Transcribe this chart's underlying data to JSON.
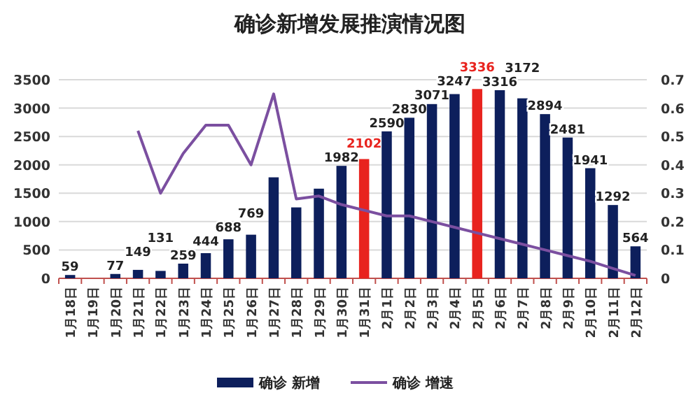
{
  "chart_data": {
    "type": "bar",
    "title": "确诊新增发展推演情况图",
    "categories": [
      "1月18日",
      "1月19日",
      "1月20日",
      "1月21日",
      "1月22日",
      "1月23日",
      "1月24日",
      "1月25日",
      "1月26日",
      "1月27日",
      "1月28日",
      "1月29日",
      "1月30日",
      "1月31日",
      "2月1日",
      "2月2日",
      "2月3日",
      "2月4日",
      "2月5日",
      "2月6日",
      "2月7日",
      "2月8日",
      "2月9日",
      "2月10日",
      "2月11日",
      "2月12日"
    ],
    "series": [
      {
        "name": "确诊 新增",
        "color": "#0d1f5c",
        "colors": [
          "#0d1f5c",
          null,
          "#0d1f5c",
          "#0d1f5c",
          "#0d1f5c",
          "#0d1f5c",
          "#0d1f5c",
          "#0d1f5c",
          "#0d1f5c",
          "#0d1f5c",
          "#0d1f5c",
          "#0d1f5c",
          "#0d1f5c",
          "#e8231e",
          "#0d1f5c",
          "#0d1f5c",
          "#0d1f5c",
          "#0d1f5c",
          "#e8231e",
          "#0d1f5c",
          "#0d1f5c",
          "#0d1f5c",
          "#0d1f5c",
          "#0d1f5c",
          "#0d1f5c",
          "#0d1f5c"
        ],
        "values": [
          59,
          null,
          77,
          149,
          131,
          259,
          444,
          688,
          769,
          1780,
          1250,
          1580,
          1982,
          2102,
          2590,
          2830,
          3071,
          3247,
          3336,
          3316,
          3172,
          2894,
          2481,
          1941,
          1292,
          564
        ],
        "value_labels": [
          "59",
          null,
          "77",
          "149",
          "131",
          "259",
          "444",
          "688",
          "769",
          null,
          null,
          null,
          "1982",
          "2102",
          "2590",
          "2830",
          "3071",
          "3247",
          "3336",
          "3316",
          "3172",
          "2894",
          "2481",
          "1941",
          "1292",
          "564"
        ]
      },
      {
        "name": "确诊 增速",
        "type": "line",
        "axis": "y2",
        "color": "#7b4fa0",
        "values": [
          null,
          null,
          null,
          0.52,
          0.3,
          0.44,
          0.54,
          0.54,
          0.4,
          0.65,
          0.28,
          0.29,
          0.26,
          0.24,
          0.22,
          0.22,
          0.2,
          0.18,
          0.16,
          0.14,
          0.12,
          0.1,
          0.08,
          0.06,
          0.035,
          0.01
        ]
      }
    ],
    "ylim": [
      0,
      3500
    ],
    "yticks": [
      0,
      500,
      1000,
      1500,
      2000,
      2500,
      3000,
      3500
    ],
    "y2lim": [
      0,
      0.7
    ],
    "y2ticks": [
      0,
      0.1,
      0.2,
      0.3,
      0.4,
      0.5,
      0.6,
      0.7
    ],
    "grid": "y",
    "legend": "bottom"
  }
}
